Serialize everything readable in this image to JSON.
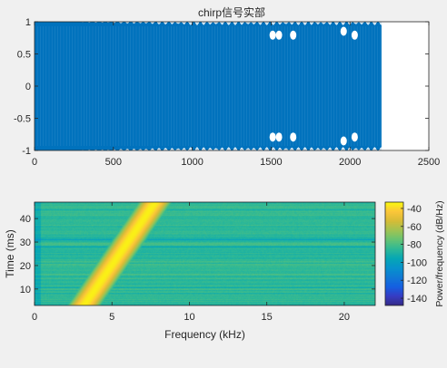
{
  "chart_data": [
    {
      "type": "line",
      "title": "chirp信号实部",
      "xlim": [
        0,
        2500
      ],
      "ylim": [
        -1,
        1
      ],
      "xticks": [
        "0",
        "500",
        "1000",
        "1500",
        "2000",
        "2500"
      ],
      "yticks": [
        "-1",
        "-0.5",
        "0",
        "0.5",
        "1"
      ],
      "series": [
        {
          "x_range": [
            0,
            2200
          ],
          "amplitude": 1,
          "color": "#0072bd"
        }
      ],
      "grid": false
    },
    {
      "type": "heatmap",
      "title": "",
      "xlabel": "Frequency (kHz)",
      "ylabel": "Time (ms)",
      "xlim": [
        0,
        22
      ],
      "ylim": [
        3,
        47
      ],
      "xticks": [
        "0",
        "5",
        "10",
        "15",
        "20"
      ],
      "yticks": [
        "10",
        "20",
        "30",
        "40"
      ],
      "ridge": {
        "freq_start_khz": 3.2,
        "freq_end_khz": 7.8,
        "time_start_ms": 3,
        "time_end_ms": 47
      },
      "colorbar": {
        "label": "Power/frequency (dB/Hz)",
        "range": [
          -148,
          -33
        ],
        "ticks": [
          "-40",
          "-60",
          "-80",
          "-100",
          "-120",
          "-140"
        ],
        "colormap": "parula"
      }
    }
  ]
}
